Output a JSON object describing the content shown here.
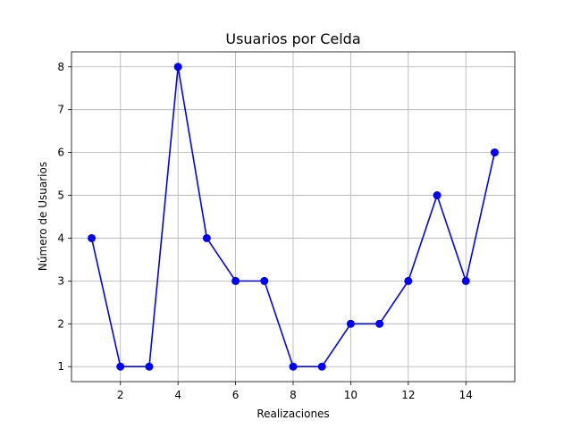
{
  "chart_data": {
    "type": "line",
    "title": "Usuarios por Celda",
    "xlabel": "Realizaciones",
    "ylabel": "Número de Usuarios",
    "x": [
      1,
      2,
      3,
      4,
      5,
      6,
      7,
      8,
      9,
      10,
      11,
      12,
      13,
      14,
      15
    ],
    "series": [
      {
        "values": [
          4,
          1,
          1,
          8,
          4,
          3,
          3,
          1,
          1,
          2,
          2,
          3,
          5,
          3,
          6
        ],
        "color": "#0000ff",
        "marker": "circle"
      }
    ],
    "xlim": [
      0.3,
      15.7
    ],
    "ylim": [
      0.65,
      8.35
    ],
    "xticks": [
      2,
      4,
      6,
      8,
      10,
      12,
      14
    ],
    "yticks": [
      1,
      2,
      3,
      4,
      5,
      6,
      7,
      8
    ],
    "grid": true,
    "legend": "none"
  }
}
